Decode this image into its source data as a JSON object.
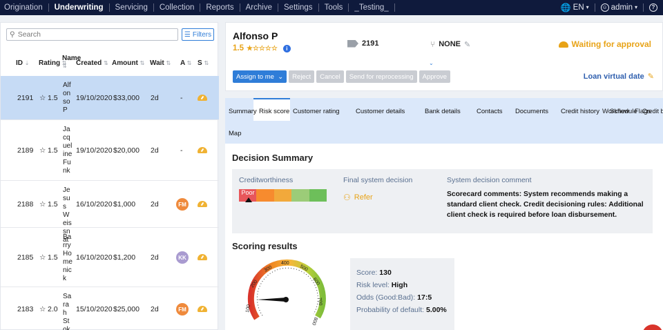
{
  "nav": {
    "items": [
      "Origination",
      "Underwriting",
      "Servicing",
      "Collection",
      "Reports",
      "Archive",
      "Settings",
      "Tools",
      "_Testing_"
    ],
    "active": "Underwriting",
    "language": "EN",
    "user": "admin",
    "help": "?"
  },
  "left": {
    "search_placeholder": "Search",
    "filters_label": "Filters",
    "columns": [
      "ID",
      "Rating",
      "Name",
      "Created",
      "Amount",
      "Wait",
      "A",
      "S"
    ],
    "rows": [
      {
        "id": "2191",
        "rating": "1.5",
        "name": "Alfonso P",
        "created": "19/10/2020",
        "amount": "$33,000",
        "wait": "2d",
        "assignee": "-",
        "avatar_color": "",
        "selected": true
      },
      {
        "id": "2189",
        "rating": "1.5",
        "name": "Jacqueline Funk",
        "created": "19/10/2020",
        "amount": "$20,000",
        "wait": "2d",
        "assignee": "-",
        "avatar_color": "",
        "selected": false
      },
      {
        "id": "2188",
        "rating": "1.5",
        "name": "Jesus Weissnat",
        "created": "16/10/2020",
        "amount": "$1,000",
        "wait": "2d",
        "assignee": "FM",
        "avatar_color": "#ef8a3c",
        "selected": false
      },
      {
        "id": "2185",
        "rating": "1.5",
        "name": "Barry Homenick",
        "created": "16/10/2020",
        "amount": "$1,200",
        "wait": "2d",
        "assignee": "KK",
        "avatar_color": "#a99bd0",
        "selected": false
      },
      {
        "id": "2183",
        "rating": "2.0",
        "name": "Sarah Stokes",
        "created": "15/10/2020",
        "amount": "$25,000",
        "wait": "2d",
        "assignee": "FM",
        "avatar_color": "#ef8a3c",
        "selected": false
      }
    ]
  },
  "header": {
    "name": "Alfonso P",
    "rating": "1.5",
    "stars": "★☆☆☆☆",
    "loan_id": "2191",
    "branch": "NONE",
    "status": "Waiting for approval",
    "actions": [
      "Assign to me",
      "Reject",
      "Cancel",
      "Send for reprocessing",
      "Approve"
    ],
    "loan_virtual_date": "Loan virtual date"
  },
  "tabs": [
    "Summary",
    "Risk score",
    "Customer rating",
    "Customer details",
    "Bank details",
    "Contacts",
    "Documents",
    "Credit history",
    "Schedule",
    "Credit bureau",
    "Workflow",
    "Flags",
    "Map"
  ],
  "active_tab": "Risk score",
  "decision": {
    "title": "Decision Summary",
    "creditworthiness_label": "Creditworthiness",
    "creditworthiness_value": "Poor",
    "creditworthiness_colors": [
      "#e8565a",
      "#f78b2e",
      "#f2a93b",
      "#9ccc78",
      "#6dbf5a"
    ],
    "final_decision_label": "Final system decision",
    "final_decision_value": "Refer",
    "comment_label": "System decision comment",
    "comment": "Scorecard comments: System recommends making a standard client check. Credit decisioning rules: Additional client check is required before loan disbursement."
  },
  "scoring": {
    "title": "Scoring results",
    "gauge_ticks": [
      "100",
      "200",
      "300",
      "400",
      "500",
      "600",
      "700",
      "800"
    ],
    "score_label": "Score:",
    "score": "130",
    "risk_label": "Risk level:",
    "risk": "High",
    "odds_label": "Odds (Good:Bad):",
    "odds": "17:5",
    "pd_label": "Probability of default:",
    "pd": "5.00%"
  }
}
